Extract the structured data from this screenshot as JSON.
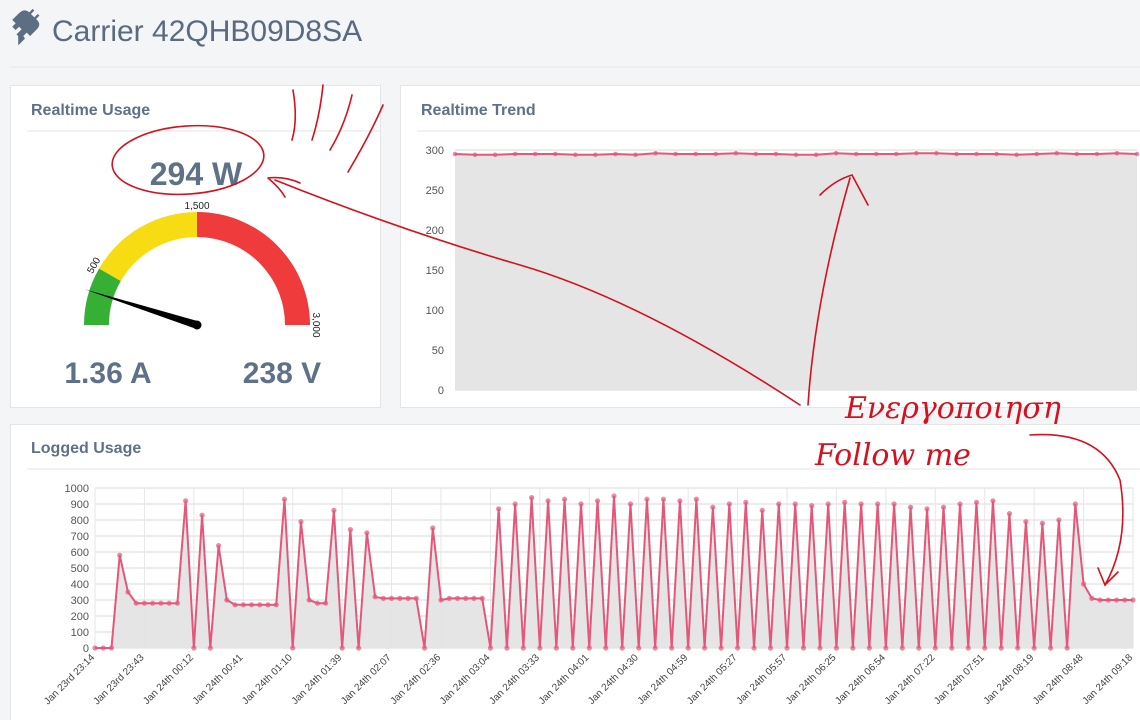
{
  "header": {
    "title": "Carrier 42QHB09D8SA"
  },
  "annotations": [
    "Ενεργοποιηση",
    "Follow me"
  ],
  "chart_data": [
    {
      "type": "gauge",
      "title": "Realtime Usage",
      "value": 294,
      "value_label": "294 W",
      "range": [
        0,
        3000
      ],
      "ticks": [
        500,
        {
          "value": 1500,
          "label": "1,500"
        },
        {
          "value": 3000,
          "label": "3,000"
        }
      ],
      "bands": [
        {
          "from": 0,
          "to": 500,
          "color": "#36b034"
        },
        {
          "from": 500,
          "to": 1500,
          "color": "#f7dc14"
        },
        {
          "from": 1500,
          "to": 3000,
          "color": "#ef3b3b"
        }
      ],
      "needle_color": "#000000",
      "current": "1.36 A",
      "voltage": "238 V"
    },
    {
      "type": "line",
      "title": "Realtime Trend",
      "values": [
        295,
        294,
        294,
        295,
        295,
        295,
        294,
        294,
        295,
        294,
        296,
        295,
        295,
        295,
        296,
        295,
        295,
        294,
        294,
        296,
        295,
        295,
        295,
        296,
        296,
        295,
        295,
        295,
        294,
        295,
        296,
        295,
        295,
        296,
        295
      ],
      "ylim": [
        0,
        310
      ],
      "yticks": [
        0,
        50,
        100,
        150,
        200,
        250,
        300
      ],
      "color": "#e4577a",
      "fill": "#e2e2e2",
      "grid": true
    },
    {
      "type": "line",
      "title": "Logged Usage",
      "categories": [
        "Jan 23rd 23:14",
        null,
        null,
        null,
        null,
        null,
        "Jan 23rd 23:43",
        null,
        null,
        null,
        null,
        null,
        "Jan 24th 00:12",
        null,
        null,
        null,
        null,
        null,
        "Jan 24th 00:41",
        null,
        null,
        null,
        null,
        null,
        "Jan 24th 01:10",
        null,
        null,
        null,
        null,
        null,
        "Jan 24th 01:39",
        null,
        null,
        null,
        null,
        null,
        "Jan 24th 02:07",
        null,
        null,
        null,
        null,
        null,
        "Jan 24th 02:36",
        null,
        null,
        null,
        null,
        null,
        "Jan 24th 03:04",
        null,
        null,
        null,
        null,
        null,
        "Jan 24th 03:33",
        null,
        null,
        null,
        null,
        null,
        "Jan 24th 04:01",
        null,
        null,
        null,
        null,
        null,
        "Jan 24th 04:30",
        null,
        null,
        null,
        null,
        null,
        "Jan 24th 04:59",
        null,
        null,
        null,
        null,
        null,
        "Jan 24th 05:27",
        null,
        null,
        null,
        null,
        null,
        "Jan 24th 05:57",
        null,
        null,
        null,
        null,
        null,
        "Jan 24th 06:25",
        null,
        null,
        null,
        null,
        null,
        "Jan 24th 06:54",
        null,
        null,
        null,
        null,
        null,
        "Jan 24th 07:22",
        null,
        null,
        null,
        null,
        null,
        "Jan 24th 07:51",
        null,
        null,
        null,
        null,
        null,
        "Jan 24th 08:19",
        null,
        null,
        null,
        null,
        null,
        "Jan 24th 08:48",
        null,
        null,
        null,
        null,
        null,
        "Jan 24th 09:18"
      ],
      "values": [
        0,
        0,
        0,
        580,
        350,
        280,
        280,
        280,
        280,
        280,
        280,
        920,
        0,
        830,
        0,
        640,
        300,
        270,
        270,
        270,
        270,
        270,
        270,
        930,
        0,
        790,
        300,
        280,
        280,
        860,
        0,
        740,
        0,
        720,
        320,
        310,
        310,
        310,
        310,
        310,
        0,
        750,
        300,
        310,
        310,
        310,
        310,
        310,
        0,
        870,
        0,
        900,
        0,
        940,
        0,
        920,
        0,
        930,
        0,
        900,
        0,
        920,
        0,
        950,
        0,
        900,
        0,
        930,
        0,
        930,
        0,
        920,
        0,
        930,
        0,
        880,
        0,
        900,
        0,
        910,
        0,
        860,
        0,
        900,
        0,
        900,
        0,
        890,
        0,
        900,
        0,
        910,
        0,
        900,
        0,
        900,
        0,
        900,
        0,
        880,
        0,
        870,
        0,
        880,
        0,
        900,
        0,
        910,
        0,
        920,
        0,
        840,
        0,
        790,
        0,
        780,
        0,
        800,
        0,
        900,
        400,
        310,
        300,
        300,
        300,
        300,
        300
      ],
      "ylim": [
        0,
        1000
      ],
      "yticks": [
        0,
        100,
        200,
        300,
        400,
        500,
        600,
        700,
        800,
        900,
        1000
      ],
      "color": "#e4577a",
      "fill": "#e2e2e2",
      "grid": true
    }
  ]
}
